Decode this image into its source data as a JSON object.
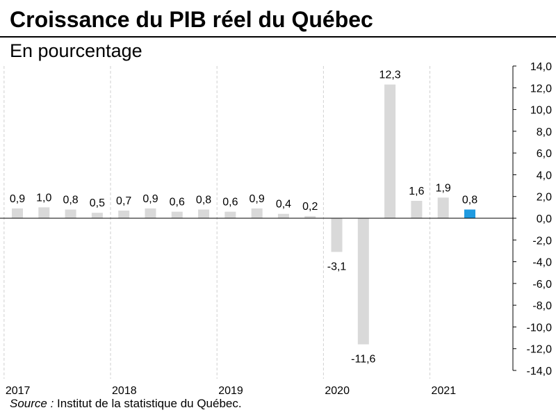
{
  "title": "Croissance du PIB réel du Québec",
  "subtitle": "En pourcentage",
  "source": {
    "label": "Source :",
    "text": " Institut de la statistique du Québec."
  },
  "colors": {
    "bar": "#d9d9d9",
    "highlight": "#1f9ae0",
    "grid": "#d0d0d0",
    "axis": "#000000"
  },
  "chart_data": {
    "type": "bar",
    "title": "Croissance du PIB réel du Québec",
    "ylabel": "En pourcentage",
    "ylim": [
      -14.0,
      14.0
    ],
    "y_ticks": [
      "14,0",
      "12,0",
      "10,0",
      "8,0",
      "6,0",
      "4,0",
      "2,0",
      "0,0",
      "-2,0",
      "-4,0",
      "-6,0",
      "-8,0",
      "-10,0",
      "-12,0",
      "-14,0"
    ],
    "year_labels": [
      "2017",
      "2018",
      "2019",
      "2020",
      "2021"
    ],
    "values": [
      0.9,
      1.0,
      0.8,
      0.5,
      0.7,
      0.9,
      0.6,
      0.8,
      0.6,
      0.9,
      0.4,
      0.2,
      -3.1,
      -11.6,
      12.3,
      1.6,
      1.9,
      0.8
    ],
    "value_labels": [
      "0,9",
      "1,0",
      "0,8",
      "0,5",
      "0,7",
      "0,9",
      "0,6",
      "0,8",
      "0,6",
      "0,9",
      "0,4",
      "0,2",
      "-3,1",
      "-11,6",
      "12,3",
      "1,6",
      "1,9",
      "0,8"
    ],
    "highlight_index": 17,
    "grid": "vertical-dashed-year-separators",
    "legend": "none"
  }
}
